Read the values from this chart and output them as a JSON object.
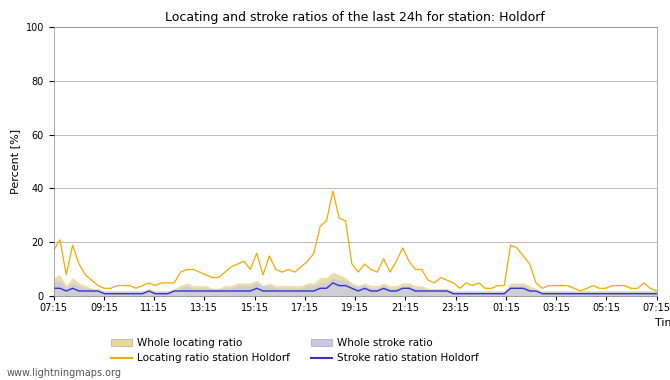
{
  "title": "Locating and stroke ratios of the last 24h for station: Holdorf",
  "ylabel": "Percent [%]",
  "xlabel": "Time",
  "watermark": "www.lightningmaps.org",
  "ylim": [
    0,
    100
  ],
  "tick_labels": [
    "07:15",
    "09:15",
    "11:15",
    "13:15",
    "15:15",
    "17:15",
    "19:15",
    "21:15",
    "23:15",
    "01:15",
    "03:15",
    "05:15",
    "07:15"
  ],
  "locating_line_color": "#f5a800",
  "stroke_line_color": "#3333cc",
  "locating_fill_color": "#e8d89a",
  "stroke_fill_color": "#c5c8e8",
  "background_color": "#ffffff",
  "grid_color": "#bbbbbb",
  "locating_line": [
    17,
    21,
    8,
    19,
    12,
    8,
    6,
    4,
    3,
    3,
    4,
    4,
    4,
    3,
    4,
    5,
    4,
    5,
    5,
    5,
    9,
    10,
    10,
    9,
    8,
    7,
    7,
    9,
    11,
    12,
    13,
    10,
    16,
    8,
    15,
    10,
    9,
    10,
    9,
    11,
    13,
    16,
    26,
    28,
    39,
    29,
    28,
    12,
    9,
    12,
    10,
    9,
    14,
    9,
    13,
    18,
    13,
    10,
    10,
    6,
    5,
    7,
    6,
    5,
    3,
    5,
    4,
    5,
    3,
    3,
    4,
    4,
    19,
    18,
    15,
    12,
    5,
    3,
    4,
    4,
    4,
    4,
    3,
    2,
    3,
    4,
    3,
    3,
    4,
    4,
    4,
    3,
    3,
    5,
    3,
    2
  ],
  "locating_fill": [
    7,
    8,
    4,
    7,
    5,
    4,
    3,
    3,
    2,
    2,
    2,
    2,
    2,
    2,
    2,
    3,
    2,
    2,
    2,
    3,
    4,
    5,
    4,
    4,
    4,
    3,
    3,
    4,
    4,
    5,
    5,
    5,
    6,
    4,
    5,
    4,
    4,
    4,
    4,
    4,
    5,
    5,
    7,
    7,
    9,
    8,
    7,
    5,
    4,
    5,
    4,
    4,
    5,
    4,
    4,
    5,
    5,
    4,
    4,
    3,
    3,
    3,
    3,
    2,
    2,
    2,
    2,
    2,
    2,
    2,
    2,
    2,
    5,
    5,
    5,
    4,
    3,
    2,
    2,
    2,
    2,
    2,
    2,
    2,
    2,
    2,
    2,
    2,
    2,
    2,
    2,
    2,
    2,
    2,
    2,
    2
  ],
  "stroke_line": [
    3,
    3,
    2,
    3,
    2,
    2,
    2,
    2,
    1,
    1,
    1,
    1,
    1,
    1,
    1,
    2,
    1,
    1,
    1,
    2,
    2,
    2,
    2,
    2,
    2,
    2,
    2,
    2,
    2,
    2,
    2,
    2,
    3,
    2,
    2,
    2,
    2,
    2,
    2,
    2,
    2,
    2,
    3,
    3,
    5,
    4,
    4,
    3,
    2,
    3,
    2,
    2,
    3,
    2,
    2,
    3,
    3,
    2,
    2,
    2,
    2,
    2,
    2,
    1,
    1,
    1,
    1,
    1,
    1,
    1,
    1,
    1,
    3,
    3,
    3,
    2,
    2,
    1,
    1,
    1,
    1,
    1,
    1,
    1,
    1,
    1,
    1,
    1,
    1,
    1,
    1,
    1,
    1,
    1,
    1,
    1
  ],
  "stroke_fill": [
    5,
    6,
    3,
    5,
    4,
    3,
    3,
    2,
    2,
    2,
    2,
    2,
    2,
    2,
    2,
    2,
    2,
    2,
    2,
    2,
    3,
    4,
    3,
    3,
    3,
    3,
    3,
    3,
    3,
    4,
    4,
    4,
    5,
    4,
    4,
    3,
    3,
    3,
    3,
    3,
    4,
    4,
    5,
    5,
    7,
    6,
    6,
    4,
    4,
    4,
    3,
    3,
    4,
    3,
    3,
    4,
    4,
    3,
    3,
    2,
    2,
    2,
    2,
    2,
    2,
    2,
    2,
    2,
    2,
    2,
    2,
    2,
    4,
    4,
    4,
    3,
    2,
    2,
    2,
    2,
    2,
    2,
    2,
    2,
    2,
    2,
    2,
    2,
    2,
    2,
    2,
    2,
    2,
    2,
    2,
    2
  ],
  "legend_labels": [
    "Whole locating ratio",
    "Locating ratio station Holdorf",
    "Whole stroke ratio",
    "Stroke ratio station Holdorf"
  ],
  "title_fontsize": 9,
  "tick_fontsize": 7,
  "label_fontsize": 8
}
